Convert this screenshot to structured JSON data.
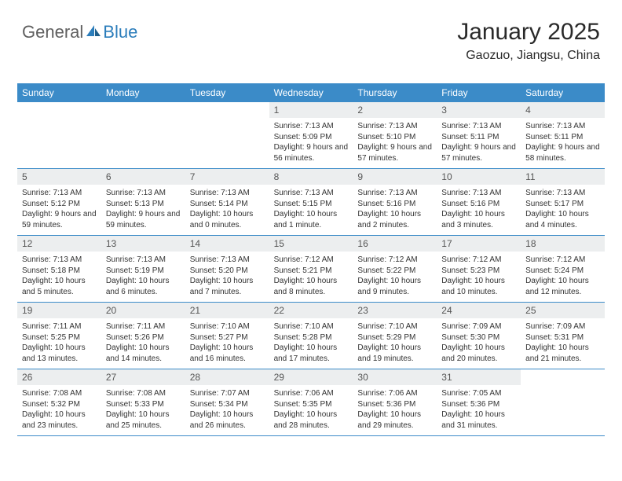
{
  "brand": {
    "part1": "General",
    "part2": "Blue"
  },
  "title": "January 2025",
  "location": "Gaozuo, Jiangsu, China",
  "colors": {
    "header_bg": "#3b8bc8",
    "header_text": "#ffffff",
    "datenum_bg": "#eceeef",
    "border": "#3b8bc8",
    "logo_gray": "#606060",
    "logo_blue": "#2b7dbb"
  },
  "day_names": [
    "Sunday",
    "Monday",
    "Tuesday",
    "Wednesday",
    "Thursday",
    "Friday",
    "Saturday"
  ],
  "weeks": [
    [
      {
        "empty": true
      },
      {
        "empty": true
      },
      {
        "empty": true
      },
      {
        "date": "1",
        "sunrise": "7:13 AM",
        "sunset": "5:09 PM",
        "daylight": "9 hours and 56 minutes."
      },
      {
        "date": "2",
        "sunrise": "7:13 AM",
        "sunset": "5:10 PM",
        "daylight": "9 hours and 57 minutes."
      },
      {
        "date": "3",
        "sunrise": "7:13 AM",
        "sunset": "5:11 PM",
        "daylight": "9 hours and 57 minutes."
      },
      {
        "date": "4",
        "sunrise": "7:13 AM",
        "sunset": "5:11 PM",
        "daylight": "9 hours and 58 minutes."
      }
    ],
    [
      {
        "date": "5",
        "sunrise": "7:13 AM",
        "sunset": "5:12 PM",
        "daylight": "9 hours and 59 minutes."
      },
      {
        "date": "6",
        "sunrise": "7:13 AM",
        "sunset": "5:13 PM",
        "daylight": "9 hours and 59 minutes."
      },
      {
        "date": "7",
        "sunrise": "7:13 AM",
        "sunset": "5:14 PM",
        "daylight": "10 hours and 0 minutes."
      },
      {
        "date": "8",
        "sunrise": "7:13 AM",
        "sunset": "5:15 PM",
        "daylight": "10 hours and 1 minute."
      },
      {
        "date": "9",
        "sunrise": "7:13 AM",
        "sunset": "5:16 PM",
        "daylight": "10 hours and 2 minutes."
      },
      {
        "date": "10",
        "sunrise": "7:13 AM",
        "sunset": "5:16 PM",
        "daylight": "10 hours and 3 minutes."
      },
      {
        "date": "11",
        "sunrise": "7:13 AM",
        "sunset": "5:17 PM",
        "daylight": "10 hours and 4 minutes."
      }
    ],
    [
      {
        "date": "12",
        "sunrise": "7:13 AM",
        "sunset": "5:18 PM",
        "daylight": "10 hours and 5 minutes."
      },
      {
        "date": "13",
        "sunrise": "7:13 AM",
        "sunset": "5:19 PM",
        "daylight": "10 hours and 6 minutes."
      },
      {
        "date": "14",
        "sunrise": "7:13 AM",
        "sunset": "5:20 PM",
        "daylight": "10 hours and 7 minutes."
      },
      {
        "date": "15",
        "sunrise": "7:12 AM",
        "sunset": "5:21 PM",
        "daylight": "10 hours and 8 minutes."
      },
      {
        "date": "16",
        "sunrise": "7:12 AM",
        "sunset": "5:22 PM",
        "daylight": "10 hours and 9 minutes."
      },
      {
        "date": "17",
        "sunrise": "7:12 AM",
        "sunset": "5:23 PM",
        "daylight": "10 hours and 10 minutes."
      },
      {
        "date": "18",
        "sunrise": "7:12 AM",
        "sunset": "5:24 PM",
        "daylight": "10 hours and 12 minutes."
      }
    ],
    [
      {
        "date": "19",
        "sunrise": "7:11 AM",
        "sunset": "5:25 PM",
        "daylight": "10 hours and 13 minutes."
      },
      {
        "date": "20",
        "sunrise": "7:11 AM",
        "sunset": "5:26 PM",
        "daylight": "10 hours and 14 minutes."
      },
      {
        "date": "21",
        "sunrise": "7:10 AM",
        "sunset": "5:27 PM",
        "daylight": "10 hours and 16 minutes."
      },
      {
        "date": "22",
        "sunrise": "7:10 AM",
        "sunset": "5:28 PM",
        "daylight": "10 hours and 17 minutes."
      },
      {
        "date": "23",
        "sunrise": "7:10 AM",
        "sunset": "5:29 PM",
        "daylight": "10 hours and 19 minutes."
      },
      {
        "date": "24",
        "sunrise": "7:09 AM",
        "sunset": "5:30 PM",
        "daylight": "10 hours and 20 minutes."
      },
      {
        "date": "25",
        "sunrise": "7:09 AM",
        "sunset": "5:31 PM",
        "daylight": "10 hours and 21 minutes."
      }
    ],
    [
      {
        "date": "26",
        "sunrise": "7:08 AM",
        "sunset": "5:32 PM",
        "daylight": "10 hours and 23 minutes."
      },
      {
        "date": "27",
        "sunrise": "7:08 AM",
        "sunset": "5:33 PM",
        "daylight": "10 hours and 25 minutes."
      },
      {
        "date": "28",
        "sunrise": "7:07 AM",
        "sunset": "5:34 PM",
        "daylight": "10 hours and 26 minutes."
      },
      {
        "date": "29",
        "sunrise": "7:06 AM",
        "sunset": "5:35 PM",
        "daylight": "10 hours and 28 minutes."
      },
      {
        "date": "30",
        "sunrise": "7:06 AM",
        "sunset": "5:36 PM",
        "daylight": "10 hours and 29 minutes."
      },
      {
        "date": "31",
        "sunrise": "7:05 AM",
        "sunset": "5:36 PM",
        "daylight": "10 hours and 31 minutes."
      },
      {
        "empty": true
      }
    ]
  ],
  "labels": {
    "sunrise": "Sunrise:",
    "sunset": "Sunset:",
    "daylight": "Daylight:"
  }
}
